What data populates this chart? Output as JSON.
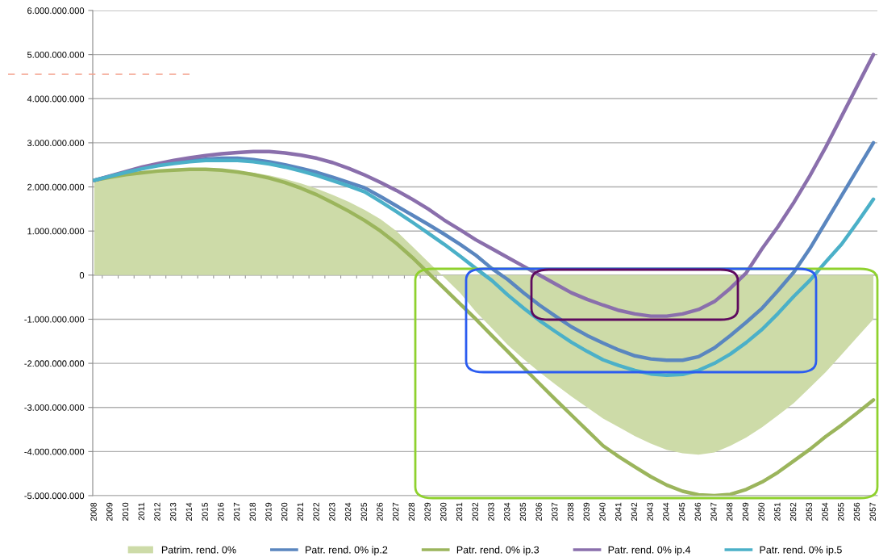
{
  "chart_data": {
    "type": "line",
    "categories": [
      "2008",
      "2009",
      "2010",
      "2011",
      "2012",
      "2013",
      "2014",
      "2015",
      "2016",
      "2017",
      "2018",
      "2019",
      "2020",
      "2021",
      "2022",
      "2023",
      "2024",
      "2025",
      "2026",
      "2027",
      "2028",
      "2029",
      "2030",
      "2031",
      "2032",
      "2033",
      "2034",
      "2035",
      "2036",
      "2037",
      "2038",
      "2039",
      "2040",
      "2041",
      "2042",
      "2043",
      "2044",
      "2045",
      "2046",
      "2047",
      "2048",
      "2049",
      "2050",
      "2051",
      "2052",
      "2053",
      "2054",
      "2055",
      "2056",
      "2057"
    ],
    "series": [
      {
        "name": "Patrim. rend. 0%",
        "type": "area",
        "color": "#cddba8",
        "values": [
          2120000000.0,
          2200000000.0,
          2260000000.0,
          2300000000.0,
          2340000000.0,
          2370000000.0,
          2390000000.0,
          2400000000.0,
          2390000000.0,
          2360000000.0,
          2320000000.0,
          2260000000.0,
          2180000000.0,
          2080000000.0,
          1960000000.0,
          1820000000.0,
          1660000000.0,
          1480000000.0,
          1270000000.0,
          1000000000.0,
          650000000.0,
          300000000.0,
          -50000000.0,
          -400000000.0,
          -830000000.0,
          -1200000000.0,
          -1580000000.0,
          -1900000000.0,
          -2200000000.0,
          -2480000000.0,
          -2750000000.0,
          -3000000000.0,
          -3250000000.0,
          -3450000000.0,
          -3650000000.0,
          -3820000000.0,
          -3960000000.0,
          -4040000000.0,
          -4070000000.0,
          -4020000000.0,
          -3870000000.0,
          -3680000000.0,
          -3450000000.0,
          -3180000000.0,
          -2900000000.0,
          -2550000000.0,
          -2200000000.0,
          -1800000000.0,
          -1400000000.0,
          -1000000000.0
        ]
      },
      {
        "name": "Patr. rend. 0% ip.2",
        "color": "#5a86bf",
        "values": [
          2150000000.0,
          2240000000.0,
          2330000000.0,
          2420000000.0,
          2500000000.0,
          2560000000.0,
          2600000000.0,
          2630000000.0,
          2650000000.0,
          2650000000.0,
          2620000000.0,
          2570000000.0,
          2500000000.0,
          2420000000.0,
          2330000000.0,
          2220000000.0,
          2100000000.0,
          1980000000.0,
          1780000000.0,
          1570000000.0,
          1360000000.0,
          1150000000.0,
          930000000.0,
          700000000.0,
          450000000.0,
          150000000.0,
          -100000000.0,
          -400000000.0,
          -680000000.0,
          -930000000.0,
          -1170000000.0,
          -1370000000.0,
          -1540000000.0,
          -1700000000.0,
          -1830000000.0,
          -1900000000.0,
          -1930000000.0,
          -1930000000.0,
          -1850000000.0,
          -1650000000.0,
          -1370000000.0,
          -1070000000.0,
          -750000000.0,
          -350000000.0,
          70000000.0,
          600000000.0,
          1200000000.0,
          1800000000.0,
          2400000000.0,
          3000000000.0
        ]
      },
      {
        "name": "Patr. rend. 0% ip.3",
        "color": "#9bb55c",
        "values": [
          2150000000.0,
          2220000000.0,
          2280000000.0,
          2320000000.0,
          2360000000.0,
          2380000000.0,
          2400000000.0,
          2400000000.0,
          2380000000.0,
          2340000000.0,
          2280000000.0,
          2200000000.0,
          2100000000.0,
          1970000000.0,
          1820000000.0,
          1640000000.0,
          1450000000.0,
          1240000000.0,
          1000000000.0,
          720000000.0,
          400000000.0,
          50000000.0,
          -300000000.0,
          -650000000.0,
          -1000000000.0,
          -1370000000.0,
          -1730000000.0,
          -2100000000.0,
          -2460000000.0,
          -2820000000.0,
          -3170000000.0,
          -3520000000.0,
          -3870000000.0,
          -4120000000.0,
          -4350000000.0,
          -4570000000.0,
          -4760000000.0,
          -4900000000.0,
          -4980000000.0,
          -5000000000.0,
          -4970000000.0,
          -4860000000.0,
          -4690000000.0,
          -4470000000.0,
          -4210000000.0,
          -3950000000.0,
          -3660000000.0,
          -3400000000.0,
          -3120000000.0,
          -2830000000.0
        ]
      },
      {
        "name": "Patr. rend. 0% ip.4",
        "color": "#8a6fac",
        "values": [
          2150000000.0,
          2250000000.0,
          2350000000.0,
          2450000000.0,
          2530000000.0,
          2600000000.0,
          2660000000.0,
          2710000000.0,
          2750000000.0,
          2780000000.0,
          2800000000.0,
          2800000000.0,
          2770000000.0,
          2720000000.0,
          2650000000.0,
          2550000000.0,
          2420000000.0,
          2270000000.0,
          2100000000.0,
          1920000000.0,
          1720000000.0,
          1500000000.0,
          1250000000.0,
          1030000000.0,
          800000000.0,
          600000000.0,
          400000000.0,
          200000000.0,
          0.0,
          -200000000.0,
          -400000000.0,
          -550000000.0,
          -680000000.0,
          -800000000.0,
          -880000000.0,
          -930000000.0,
          -930000000.0,
          -880000000.0,
          -780000000.0,
          -600000000.0,
          -300000000.0,
          50000000.0,
          600000000.0,
          1100000000.0,
          1650000000.0,
          2250000000.0,
          2900000000.0,
          3600000000.0,
          4300000000.0,
          5000000000.0
        ]
      },
      {
        "name": "Patr. rend. 0% ip.5",
        "color": "#4bb0c8",
        "values": [
          2150000000.0,
          2240000000.0,
          2330000000.0,
          2410000000.0,
          2480000000.0,
          2530000000.0,
          2570000000.0,
          2600000000.0,
          2600000000.0,
          2600000000.0,
          2570000000.0,
          2520000000.0,
          2450000000.0,
          2360000000.0,
          2260000000.0,
          2140000000.0,
          2020000000.0,
          1890000000.0,
          1670000000.0,
          1440000000.0,
          1200000000.0,
          950000000.0,
          700000000.0,
          430000000.0,
          150000000.0,
          -120000000.0,
          -450000000.0,
          -750000000.0,
          -1030000000.0,
          -1280000000.0,
          -1520000000.0,
          -1730000000.0,
          -1920000000.0,
          -2050000000.0,
          -2160000000.0,
          -2240000000.0,
          -2270000000.0,
          -2250000000.0,
          -2160000000.0,
          -2000000000.0,
          -1790000000.0,
          -1530000000.0,
          -1230000000.0,
          -870000000.0,
          -480000000.0,
          -120000000.0,
          300000000.0,
          700000000.0,
          1200000000.0,
          1720000000.0
        ]
      }
    ],
    "ylim": [
      -5000000000,
      6000000000
    ],
    "yticks": [
      {
        "value": -5000000000,
        "label": "-5.000.000.000"
      },
      {
        "value": -4000000000,
        "label": "-4.000.000.000"
      },
      {
        "value": -3000000000,
        "label": "-3.000.000.000"
      },
      {
        "value": -2000000000,
        "label": "-2.000.000.000"
      },
      {
        "value": -1000000000,
        "label": "-1.000.000.000"
      },
      {
        "value": 0,
        "label": "0"
      },
      {
        "value": 1000000000,
        "label": "1.000.000.000"
      },
      {
        "value": 2000000000,
        "label": "2.000.000.000"
      },
      {
        "value": 3000000000,
        "label": "3.000.000.000"
      },
      {
        "value": 4000000000,
        "label": "4.000.000.000"
      },
      {
        "value": 5000000000,
        "label": "5.000.000.000"
      },
      {
        "value": 6000000000,
        "label": "6.000.000.000"
      }
    ],
    "grid": "y",
    "legend": "bottom",
    "marker": "none",
    "line_style": "solid"
  }
}
